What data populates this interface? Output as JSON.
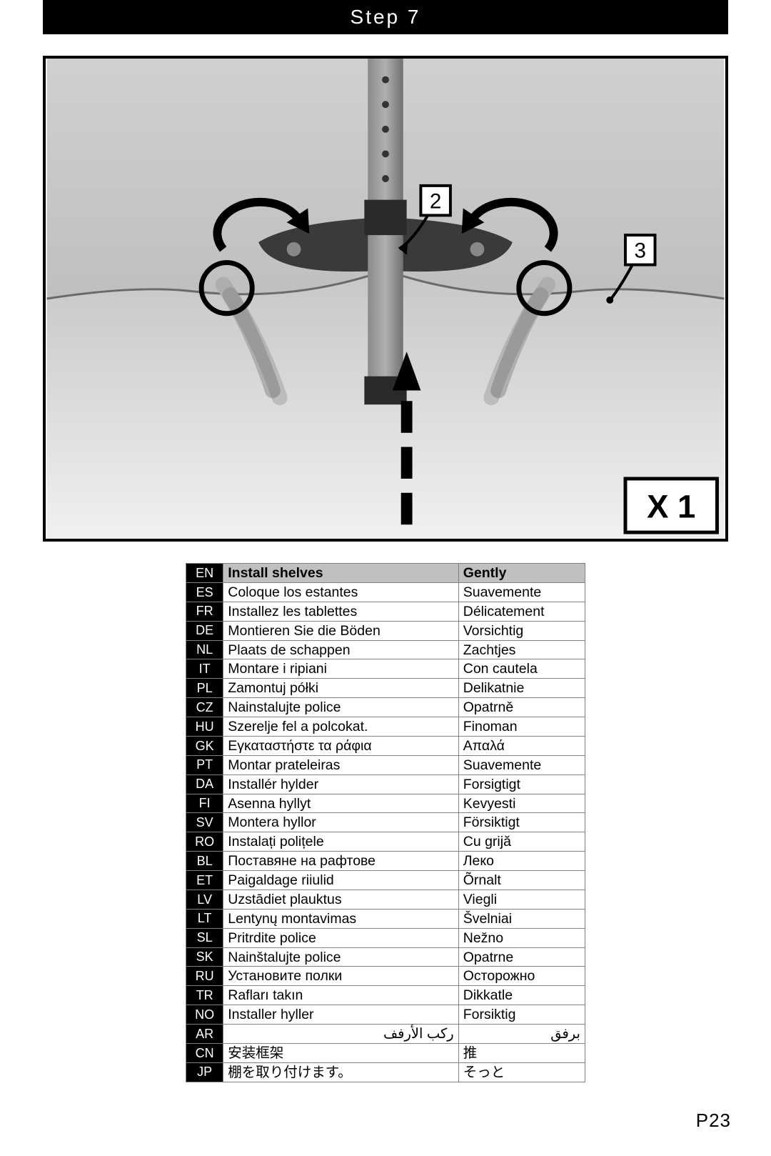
{
  "step_title": "Step 7",
  "page_number": "P23",
  "figure": {
    "callout_a": "2",
    "callout_b": "3",
    "multiplier": "X 1"
  },
  "table": {
    "header": {
      "code": "EN",
      "c1": "Install shelves",
      "c2": "Gently"
    },
    "rows": [
      {
        "code": "ES",
        "c1": "Coloque los estantes",
        "c2": "Suavemente"
      },
      {
        "code": "FR",
        "c1": "Installez les tablettes",
        "c2": "Délicatement"
      },
      {
        "code": "DE",
        "c1": "Montieren Sie die Böden",
        "c2": "Vorsichtig"
      },
      {
        "code": "NL",
        "c1": "Plaats de schappen",
        "c2": "Zachtjes"
      },
      {
        "code": "IT",
        "c1": "Montare i ripiani",
        "c2": "Con cautela"
      },
      {
        "code": "PL",
        "c1": "Zamontuj półki",
        "c2": "Delikatnie"
      },
      {
        "code": "CZ",
        "c1": "Nainstalujte police",
        "c2": "Opatrně"
      },
      {
        "code": "HU",
        "c1": "Szerelje fel a polcokat.",
        "c2": "Finoman"
      },
      {
        "code": "GK",
        "c1": "Εγκαταστήστε τα ράφια",
        "c2": "Απαλά"
      },
      {
        "code": "PT",
        "c1": "Montar prateleiras",
        "c2": "Suavemente"
      },
      {
        "code": "DA",
        "c1": "Installér hylder",
        "c2": "Forsigtigt"
      },
      {
        "code": "FI",
        "c1": "Asenna hyllyt",
        "c2": "Kevyesti"
      },
      {
        "code": "SV",
        "c1": "Montera hyllor",
        "c2": "Försiktigt"
      },
      {
        "code": "RO",
        "c1": "Instalați polițele",
        "c2": "Cu grijă"
      },
      {
        "code": "BL",
        "c1": "Поставяне на рафтове",
        "c2": "Леко"
      },
      {
        "code": "ET",
        "c1": "Paigaldage riiulid",
        "c2": "Õrnalt"
      },
      {
        "code": "LV",
        "c1": "Uzstādiet plauktus",
        "c2": "Viegli"
      },
      {
        "code": "LT",
        "c1": "Lentynų montavimas",
        "c2": "Švelniai"
      },
      {
        "code": "SL",
        "c1": "Pritrdite police",
        "c2": "Nežno"
      },
      {
        "code": "SK",
        "c1": "Nainštalujte police",
        "c2": "Opatrne"
      },
      {
        "code": "RU",
        "c1": "Установите полки",
        "c2": "Осторожно"
      },
      {
        "code": "TR",
        "c1": "Rafları takın",
        "c2": "Dikkatle"
      },
      {
        "code": "NO",
        "c1": "Installer hyller",
        "c2": "Forsiktig"
      },
      {
        "code": "AR",
        "c1": "ركب الأرفف",
        "c2": "برفق",
        "rtl": true
      },
      {
        "code": "CN",
        "c1": "安装框架",
        "c2": "推"
      },
      {
        "code": "JP",
        "c1": "棚を取り付けます。",
        "c2": "そっと"
      }
    ]
  },
  "colors": {
    "page_bg": "#ffffff",
    "black": "#000000",
    "grey_header": "#c0c0c0",
    "cell_border": "#808080",
    "photo_light": "#d9d9d9",
    "photo_mid": "#9f9f9f",
    "photo_dark": "#5a5a5a"
  }
}
